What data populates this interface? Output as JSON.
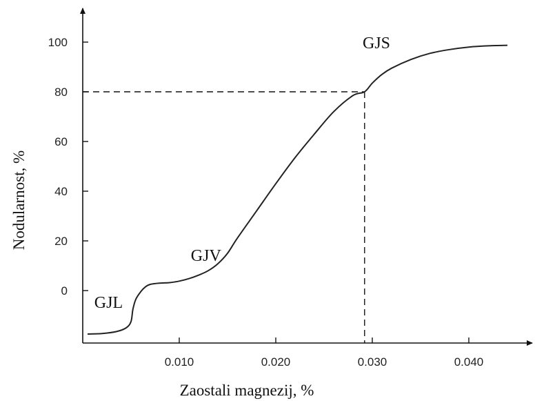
{
  "chart_data": {
    "type": "line",
    "title": "",
    "xlabel": "Zaostali magnezij, %",
    "ylabel": "Nodularnost, %",
    "xlim": [
      0.0,
      0.0445
    ],
    "ylim": [
      -20,
      105
    ],
    "x_ticks": [
      {
        "value": 0.01,
        "label": "0.010"
      },
      {
        "value": 0.02,
        "label": "0.020"
      },
      {
        "value": 0.03,
        "label": "0.030"
      },
      {
        "value": 0.04,
        "label": "0.040"
      }
    ],
    "y_ticks": [
      {
        "value": 0,
        "label": "0"
      },
      {
        "value": 20,
        "label": "20"
      },
      {
        "value": 40,
        "label": "40"
      },
      {
        "value": 60,
        "label": "60"
      },
      {
        "value": 80,
        "label": "80"
      },
      {
        "value": 100,
        "label": "100"
      }
    ],
    "grid": false,
    "legend": "none",
    "series": [
      {
        "x": [
          0.0005,
          0.002,
          0.0035,
          0.0045,
          0.005,
          0.0052,
          0.0055,
          0.006,
          0.0065,
          0.007,
          0.008,
          0.009,
          0.01,
          0.011,
          0.012,
          0.013,
          0.014,
          0.015,
          0.016,
          0.018,
          0.02,
          0.022,
          0.024,
          0.026,
          0.028,
          0.0292,
          0.03,
          0.031,
          0.032,
          0.034,
          0.036,
          0.038,
          0.04,
          0.042,
          0.044
        ],
        "y": [
          -17.5,
          -17.3,
          -16.5,
          -15.0,
          -12.5,
          -7.5,
          -3.5,
          -0.5,
          1.5,
          2.5,
          3.0,
          3.2,
          3.8,
          4.8,
          6.2,
          8.0,
          10.8,
          15.0,
          21.0,
          32.0,
          43.0,
          53.5,
          63.0,
          72.0,
          78.5,
          80.0,
          83.5,
          87.0,
          89.5,
          93.0,
          95.5,
          97.0,
          98.0,
          98.5,
          98.7
        ]
      }
    ],
    "reference_lines": {
      "x": 0.0292,
      "y": 80
    },
    "annotations": [
      {
        "text": "GJL",
        "x": 0.0012,
        "y": -7
      },
      {
        "text": "GJV",
        "x": 0.0112,
        "y": 12
      },
      {
        "text": "GJS",
        "x": 0.029,
        "y": 97.5
      }
    ],
    "colors": {
      "line": "#222222",
      "axis": "#111111"
    }
  }
}
